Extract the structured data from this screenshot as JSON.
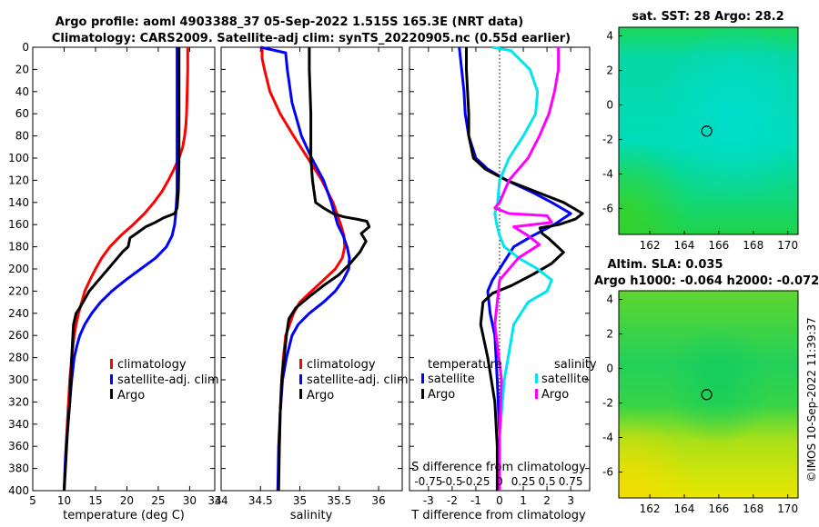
{
  "title_line1": "Argo profile: aoml 4903388_37 05-Sep-2022 1.515S 165.3E (NRT data)",
  "title_line2": "Climatology: CARS2009. Satellite-adj clim: synTS_20220905.nc (0.55d earlier)",
  "sst_title": "sat. SST: 28 Argo: 28.2",
  "sla_title1": "Altim. SLA: 0.035",
  "sla_title2": "Argo h1000: -0.064 h2000: -0.072",
  "watermark": "©IMOS 10-Sep-2022 11:39:37",
  "colors": {
    "climatology": "#ff0000",
    "satellite": "#0000ff",
    "argo": "#000000",
    "sal_sat": "#00e5ee",
    "sal_argo": "#ff00ff"
  },
  "chart_data": [
    {
      "type": "line",
      "id": "temperature",
      "xlabel": "temperature (deg C)",
      "ylabel": "",
      "xlim": [
        5,
        34
      ],
      "ylim": [
        400,
        0
      ],
      "xticks": [
        5,
        10,
        15,
        20,
        25,
        30,
        34
      ],
      "yticks": [
        0,
        20,
        40,
        60,
        80,
        100,
        120,
        140,
        160,
        180,
        200,
        220,
        240,
        260,
        280,
        300,
        320,
        340,
        360,
        380,
        400
      ],
      "legend": [
        "climatology",
        "satellite-adj. clim",
        "Argo"
      ],
      "series": [
        {
          "name": "climatology",
          "color": "#ff0000",
          "x": [
            29.7,
            29.7,
            29.6,
            29.5,
            29.4,
            29.2,
            28.9,
            28.3,
            27.5,
            26.6,
            25.6,
            24.3,
            22.8,
            21.0,
            19.0,
            17.3,
            16.0,
            15.0,
            14.1,
            13.3,
            12.8,
            12.3,
            11.9,
            11.6,
            11.2,
            10.9,
            10.6,
            10.3,
            10.0
          ],
          "y": [
            0,
            20,
            40,
            60,
            70,
            80,
            90,
            100,
            110,
            120,
            130,
            140,
            150,
            160,
            170,
            180,
            190,
            200,
            210,
            220,
            230,
            240,
            250,
            260,
            280,
            300,
            330,
            360,
            400
          ]
        },
        {
          "name": "satellite-adj. clim",
          "color": "#0000ff",
          "x": [
            28.0,
            28.0,
            28.0,
            28.0,
            28.0,
            27.9,
            27.8,
            27.6,
            27.2,
            26.3,
            24.6,
            22.2,
            19.8,
            17.6,
            15.8,
            14.4,
            13.3,
            12.5,
            12.0,
            11.6,
            11.2,
            10.9,
            10.6,
            10.2,
            10.0
          ],
          "y": [
            0,
            20,
            60,
            100,
            130,
            140,
            150,
            160,
            170,
            180,
            190,
            200,
            210,
            220,
            230,
            240,
            250,
            260,
            270,
            280,
            300,
            320,
            340,
            370,
            400
          ]
        },
        {
          "name": "Argo",
          "color": "#000000",
          "x": [
            28.3,
            28.3,
            28.3,
            28.2,
            28.0,
            27.6,
            25.8,
            24.5,
            23.0,
            21.5,
            20.5,
            20.2,
            19.4,
            18.5,
            17.0,
            15.5,
            14.0,
            13.0,
            12.4,
            11.9,
            11.5,
            11.4,
            11.2,
            10.9,
            10.5,
            10.2,
            10.0
          ],
          "y": [
            0,
            40,
            100,
            130,
            145,
            150,
            154,
            158,
            162,
            168,
            172,
            180,
            184,
            190,
            200,
            210,
            220,
            230,
            236,
            240,
            250,
            260,
            280,
            320,
            350,
            380,
            400
          ]
        }
      ]
    },
    {
      "type": "line",
      "id": "salinity",
      "xlabel": "salinity",
      "ylabel": "",
      "xlim": [
        34,
        36.3
      ],
      "ylim": [
        400,
        0
      ],
      "xticks": [
        34,
        34.5,
        35,
        35.5,
        36
      ],
      "legend": [
        "climatology",
        "satellite-adj. clim",
        "Argo"
      ],
      "series": [
        {
          "name": "climatology",
          "color": "#ff0000",
          "x": [
            34.52,
            34.52,
            34.55,
            34.62,
            34.75,
            34.92,
            35.1,
            35.28,
            35.42,
            35.52,
            35.56,
            35.57,
            35.54,
            35.45,
            35.3,
            35.15,
            35.0,
            34.92,
            34.87,
            34.82,
            34.79,
            34.77,
            34.75,
            34.74,
            34.72
          ],
          "y": [
            0,
            10,
            20,
            40,
            60,
            80,
            100,
            120,
            140,
            160,
            170,
            180,
            190,
            200,
            210,
            220,
            230,
            240,
            250,
            260,
            280,
            300,
            330,
            360,
            400
          ]
        },
        {
          "name": "satellite-adj. clim",
          "color": "#0000ff",
          "x": [
            34.5,
            34.82,
            34.84,
            34.9,
            35.02,
            35.15,
            35.3,
            35.4,
            35.48,
            35.55,
            35.6,
            35.63,
            35.62,
            35.55,
            35.45,
            35.3,
            35.12,
            34.98,
            34.9,
            34.83,
            34.78,
            34.75,
            34.73,
            34.72
          ],
          "y": [
            0,
            5,
            20,
            50,
            80,
            100,
            120,
            140,
            160,
            170,
            180,
            190,
            200,
            210,
            220,
            230,
            240,
            250,
            260,
            280,
            300,
            330,
            360,
            400
          ]
        },
        {
          "name": "Argo",
          "color": "#000000",
          "x": [
            35.12,
            35.12,
            35.14,
            35.14,
            35.16,
            35.2,
            35.3,
            35.42,
            35.56,
            35.72,
            35.85,
            35.88,
            35.78,
            35.84,
            35.76,
            35.64,
            35.5,
            35.3,
            35.12,
            34.95,
            34.86,
            34.83,
            34.8,
            34.77,
            34.75,
            34.74,
            34.73
          ],
          "y": [
            0,
            20,
            60,
            100,
            120,
            140,
            145,
            150,
            153,
            155,
            157,
            162,
            168,
            175,
            185,
            195,
            205,
            215,
            225,
            235,
            245,
            260,
            280,
            300,
            330,
            360,
            400
          ]
        }
      ]
    },
    {
      "type": "line",
      "id": "differences",
      "xlabel": "T difference from climatology",
      "ylabel": "",
      "xlim": [
        -3.8,
        3.8
      ],
      "ylim": [
        400,
        0
      ],
      "xticks": [
        -3,
        -2,
        -1,
        0,
        1,
        2,
        3
      ],
      "secondary_axis_label": "S difference from climatology",
      "secondary_ticks": [
        "-0.75",
        "-0.5",
        "-0.25",
        "0",
        "0.25",
        "0.5",
        "0.75"
      ],
      "legend_temperature_title": "temperature",
      "legend_salinity_title": "salinity",
      "legend": [
        "satellite",
        "Argo",
        "satellite",
        "Argo"
      ],
      "series": [
        {
          "name": "temperature satellite",
          "color": "#0000ff",
          "x": [
            -1.7,
            -1.6,
            -1.5,
            -1.45,
            -1.3,
            -1.0,
            -0.5,
            0.3,
            1.3,
            2.2,
            3.0,
            2.3,
            1.4,
            0.6,
            0.0,
            -0.3,
            -0.5,
            -0.4,
            -0.2,
            -0.1,
            0.0,
            0.0
          ],
          "y": [
            0,
            20,
            40,
            60,
            80,
            100,
            110,
            120,
            130,
            140,
            150,
            160,
            170,
            180,
            200,
            210,
            220,
            240,
            260,
            300,
            350,
            400
          ]
        },
        {
          "name": "temperature Argo",
          "color": "#000000",
          "x": [
            -1.4,
            -1.4,
            -1.3,
            -1.3,
            -1.1,
            -0.6,
            0.3,
            1.5,
            2.7,
            3.5,
            3.2,
            2.5,
            1.7,
            1.8,
            2.1,
            2.7,
            2.2,
            1.4,
            0.5,
            -0.3,
            -0.7,
            -0.8,
            -0.5,
            -0.2,
            -0.1,
            -0.1
          ],
          "y": [
            0,
            20,
            60,
            80,
            100,
            110,
            120,
            130,
            140,
            150,
            155,
            160,
            163,
            168,
            173,
            185,
            195,
            205,
            215,
            222,
            230,
            250,
            280,
            320,
            360,
            400
          ]
        },
        {
          "name": "salinity satellite",
          "color": "#00e5ee",
          "x": [
            -0.08,
            0.12,
            0.32,
            0.4,
            0.38,
            0.25,
            0.1,
            0.0,
            -0.02,
            -0.05,
            -0.03,
            0.0,
            0.05,
            0.2,
            0.4,
            0.55,
            0.5,
            0.3,
            0.15,
            0.05,
            0.0,
            0.0
          ],
          "y": [
            0,
            3,
            20,
            40,
            60,
            80,
            100,
            120,
            140,
            150,
            160,
            170,
            180,
            190,
            200,
            210,
            220,
            230,
            250,
            300,
            350,
            400
          ]
        },
        {
          "name": "salinity Argo",
          "color": "#ff00ff",
          "x": [
            0.62,
            0.62,
            0.58,
            0.52,
            0.42,
            0.3,
            0.2,
            0.1,
            0.05,
            0.0,
            -0.05,
            0.1,
            0.5,
            0.55,
            0.15,
            0.3,
            0.42,
            0.2,
            0.0,
            -0.05,
            0.02,
            0.0,
            0.0
          ],
          "y": [
            0,
            20,
            40,
            60,
            80,
            100,
            110,
            120,
            130,
            140,
            145,
            150,
            152,
            158,
            162,
            170,
            178,
            190,
            210,
            250,
            300,
            350,
            400
          ]
        }
      ]
    },
    {
      "type": "heatmap",
      "id": "sst_map",
      "title": "sat. SST: 28 Argo: 28.2",
      "xticks": [
        162,
        164,
        166,
        168,
        170
      ],
      "yticks": [
        4,
        2,
        0,
        -2,
        -4,
        -6
      ],
      "xlim": [
        160.2,
        170.6
      ],
      "ylim": [
        -7.5,
        4.5
      ],
      "argo_position": {
        "lon": 165.3,
        "lat": -1.515
      }
    },
    {
      "type": "heatmap",
      "id": "sla_map",
      "title": "Altim. SLA: 0.035 / Argo h1000: -0.064 h2000: -0.072",
      "xticks": [
        162,
        164,
        166,
        168,
        170
      ],
      "yticks": [
        4,
        2,
        0,
        -2,
        -4,
        -6
      ],
      "xlim": [
        160.2,
        170.6
      ],
      "ylim": [
        -7.5,
        4.5
      ],
      "argo_position": {
        "lon": 165.3,
        "lat": -1.515
      }
    }
  ]
}
